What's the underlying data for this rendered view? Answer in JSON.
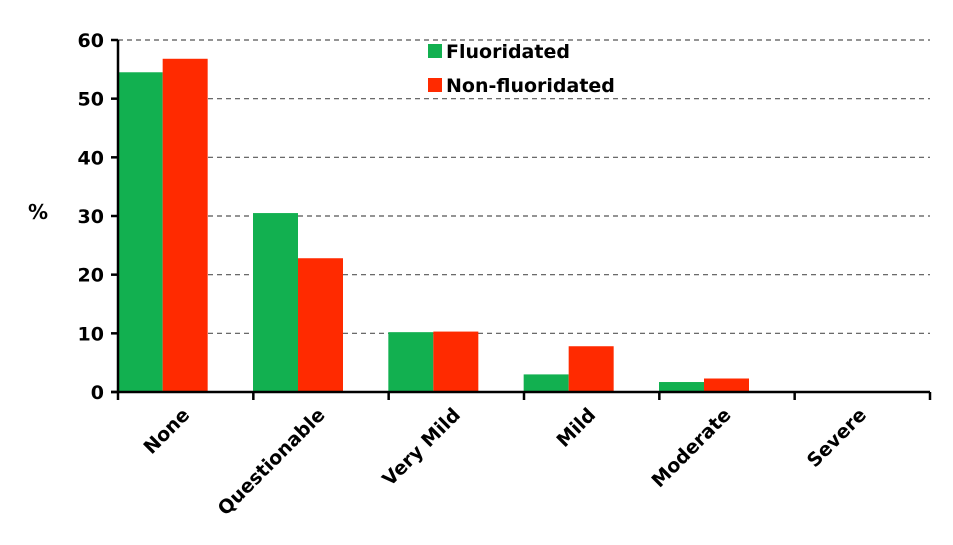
{
  "chart_data": {
    "type": "bar",
    "title": "",
    "xlabel": "",
    "ylabel": "%",
    "ylim": [
      0,
      60
    ],
    "yticks": [
      0,
      10,
      20,
      30,
      40,
      50,
      60
    ],
    "grid": true,
    "legend_position": "top-center",
    "categories": [
      "None",
      "Questionable",
      "Very Mild",
      "Mild",
      "Moderate",
      "Severe"
    ],
    "series": [
      {
        "name": "Fluoridated",
        "color": "#12b050",
        "values": [
          54.5,
          30.5,
          10.2,
          3.0,
          1.7,
          0
        ]
      },
      {
        "name": "Non-fluoridated",
        "color": "#ff2a00",
        "values": [
          56.8,
          22.8,
          10.3,
          7.8,
          2.3,
          0
        ]
      }
    ]
  }
}
